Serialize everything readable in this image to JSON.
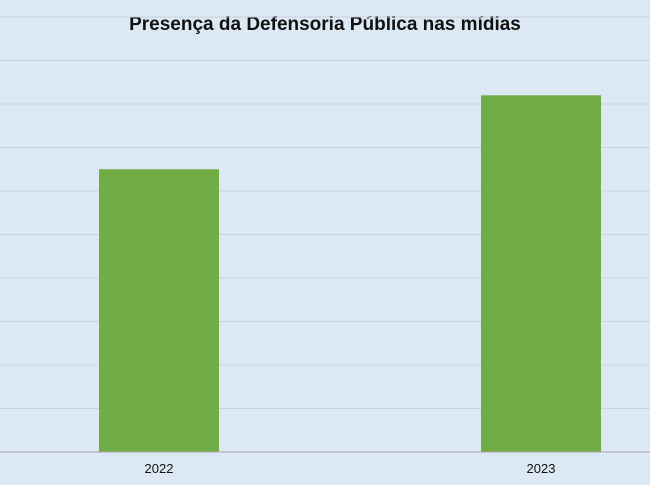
{
  "chart_data": {
    "type": "bar",
    "title": "Presença da Defensoria Pública nas mídias",
    "categories": [
      "2022",
      "2023"
    ],
    "values": [
      65,
      82
    ],
    "ylim": [
      0,
      100
    ],
    "grid": true,
    "legend": "none",
    "xlabel": "",
    "ylabel": ""
  },
  "colors": {
    "background": "#dde8f5",
    "bar": "#70ad47",
    "grid": "#c9d3de",
    "axis": "#a6a6a6",
    "text": "#111111"
  }
}
